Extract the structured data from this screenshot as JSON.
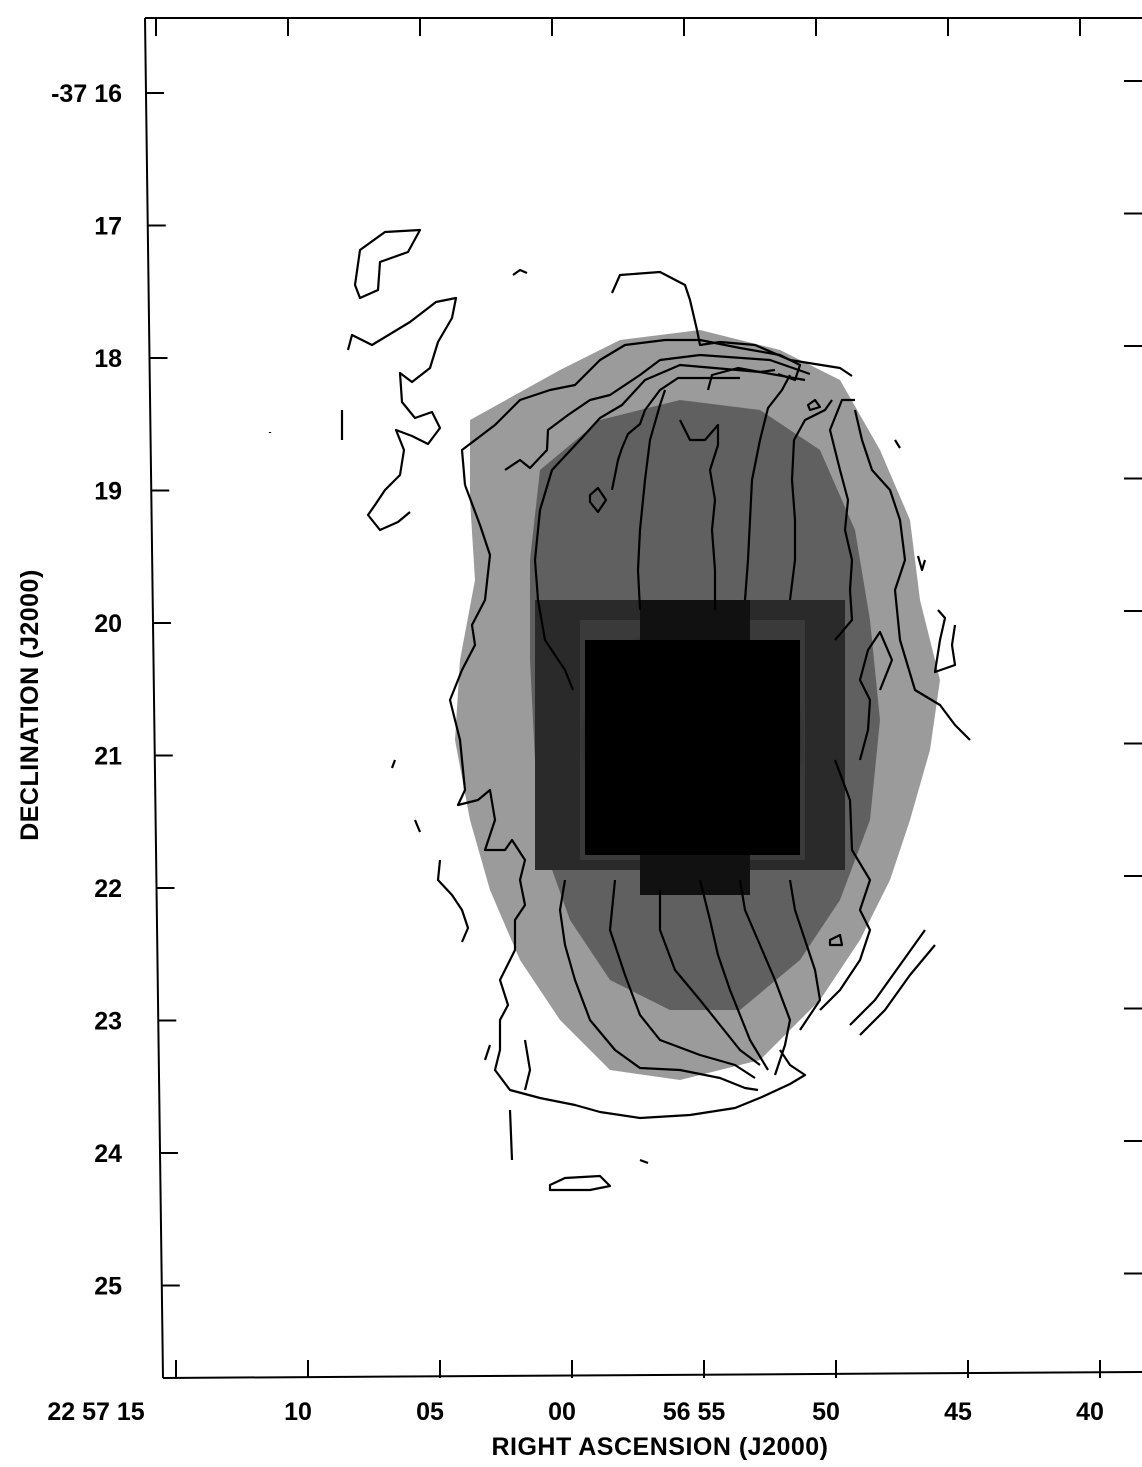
{
  "chart_data": {
    "type": "heatmap",
    "title": "",
    "xlabel": "RIGHT  ASCENSION  (J2000)",
    "ylabel": "DECLINATION  (J2000)",
    "x_ticks": [
      "22 57 15",
      "10",
      "05",
      "00",
      "56 55",
      "50",
      "45",
      "40"
    ],
    "y_ticks": [
      "-37  16",
      "17",
      "18",
      "19",
      "20",
      "21",
      "22",
      "23",
      "24",
      "25"
    ],
    "x_range_ra_s": [
      15.5,
      -40.5
    ],
    "y_range_dec_arcmin": [
      15.5,
      25.7
    ],
    "x_units": "seconds of RA relative to 22 57 00",
    "y_units": "arcminutes south of -37 00",
    "colormap": "greyscale (darker = brighter emission)",
    "contours": true,
    "peak_center_ra_s": -55.5,
    "peak_center_dec_arcmin": 21.0
  }
}
